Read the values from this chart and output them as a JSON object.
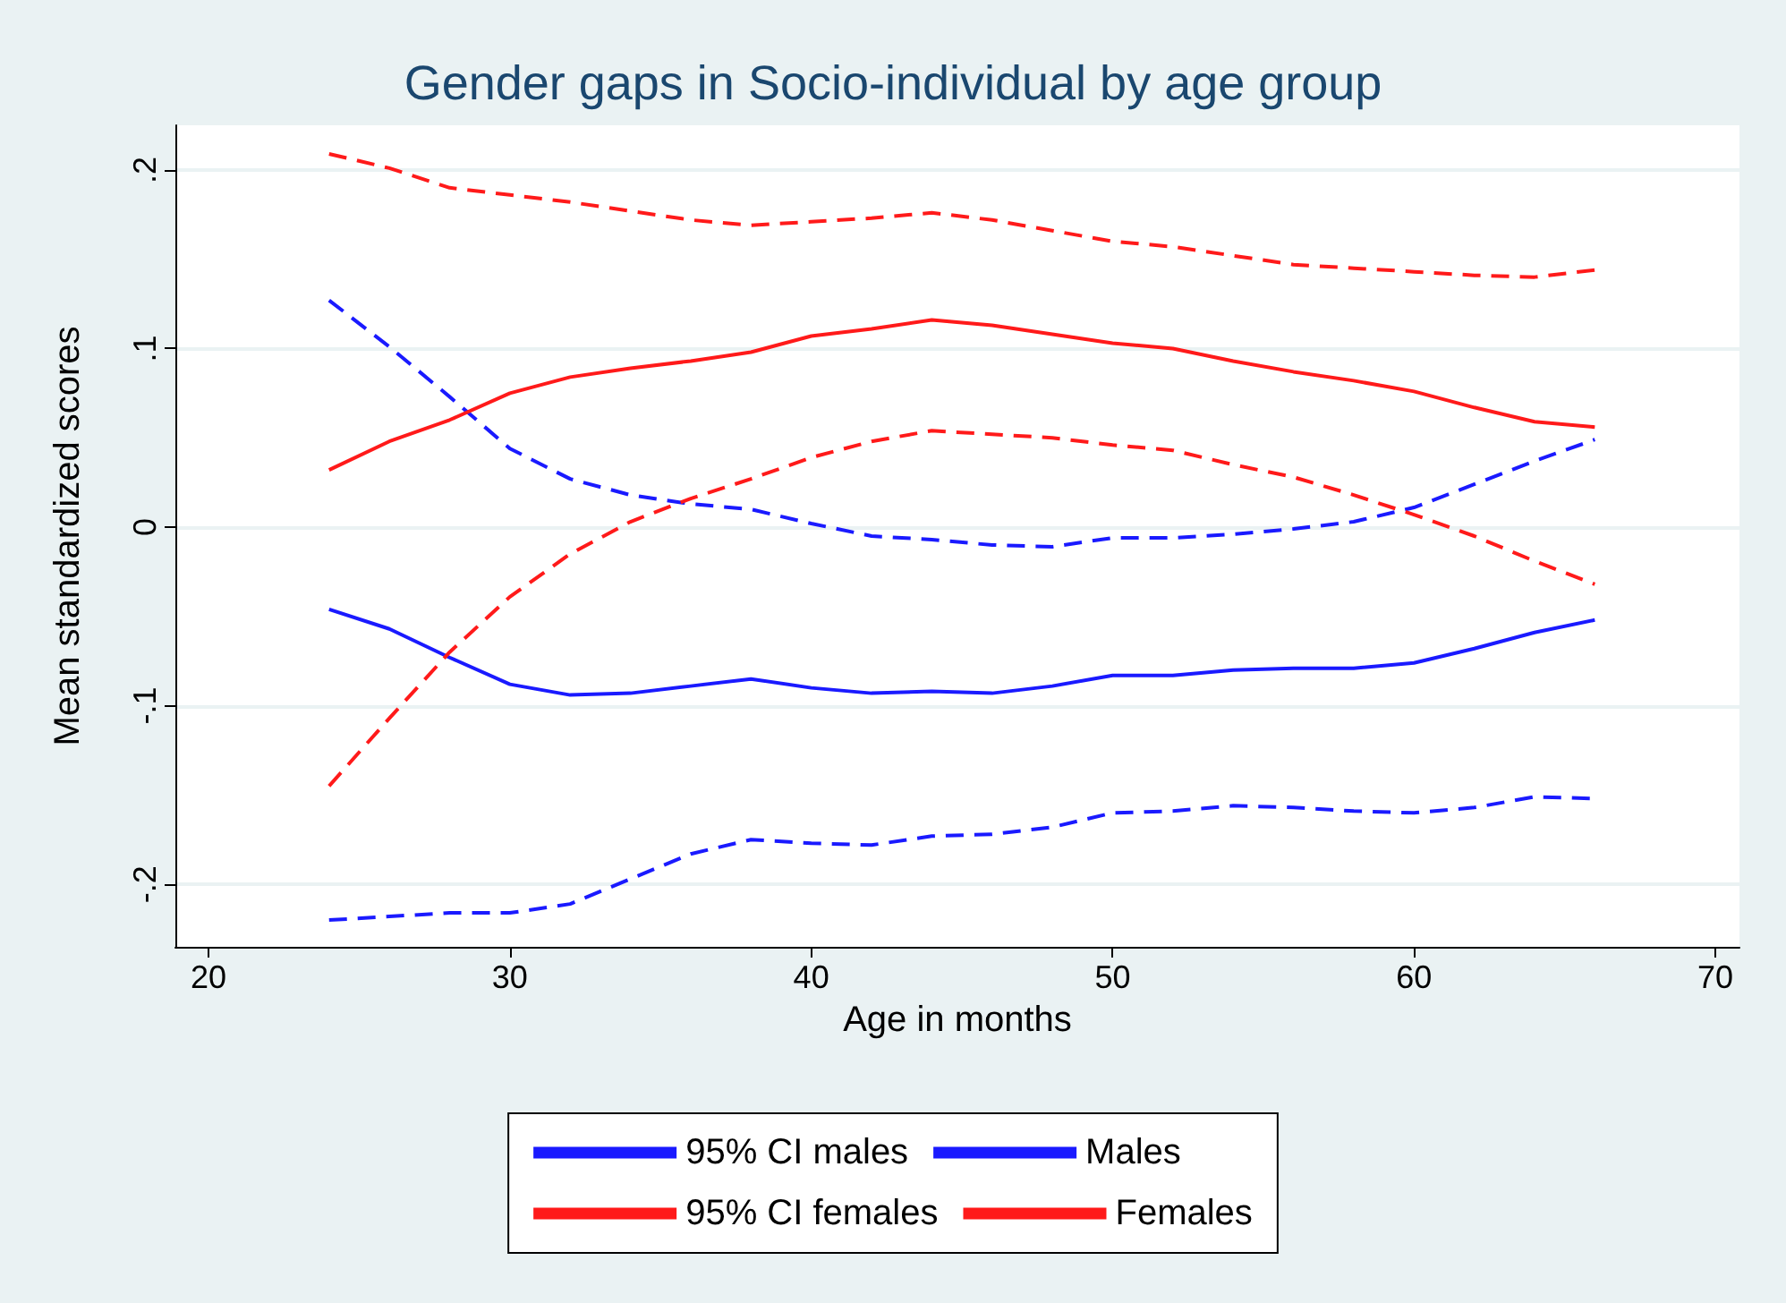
{
  "chart_data": {
    "type": "line",
    "title": "Gender gaps in Socio-individual by age group",
    "xlabel": "Age in months",
    "ylabel": "Mean standardized scores",
    "x": [
      24,
      26,
      28,
      30,
      32,
      34,
      36,
      38,
      40,
      42,
      44,
      46,
      48,
      50,
      52,
      54,
      56,
      58,
      60,
      62,
      64,
      66
    ],
    "series": [
      {
        "name": "95% CI males",
        "color": "#1a1aff",
        "line_style": "dashed",
        "values": [
          0.127,
          0.101,
          0.073,
          0.044,
          0.027,
          0.018,
          0.013,
          0.01,
          0.002,
          -0.005,
          -0.007,
          -0.01,
          -0.011,
          -0.006,
          -0.006,
          -0.004,
          -0.001,
          0.003,
          0.011,
          0.024,
          0.037,
          0.049
        ]
      },
      {
        "name": "Males",
        "color": "#1a1aff",
        "line_style": "solid",
        "values": [
          -0.046,
          -0.057,
          -0.073,
          -0.088,
          -0.094,
          -0.093,
          -0.089,
          -0.085,
          -0.09,
          -0.093,
          -0.092,
          -0.093,
          -0.089,
          -0.083,
          -0.083,
          -0.08,
          -0.079,
          -0.079,
          -0.076,
          -0.068,
          -0.059,
          -0.052
        ]
      },
      {
        "name": "95% CI females",
        "color": "#ff1a1a",
        "line_style": "dashed",
        "values": [
          -0.145,
          -0.107,
          -0.07,
          -0.039,
          -0.015,
          0.003,
          0.016,
          0.027,
          0.039,
          0.048,
          0.054,
          0.052,
          0.05,
          0.046,
          0.043,
          0.035,
          0.028,
          0.018,
          0.007,
          -0.005,
          -0.019,
          -0.032
        ]
      },
      {
        "name": "Females",
        "color": "#ff1a1a",
        "line_style": "solid",
        "values": [
          0.032,
          0.048,
          0.06,
          0.075,
          0.084,
          0.089,
          0.093,
          0.098,
          0.107,
          0.111,
          0.116,
          0.113,
          0.108,
          0.103,
          0.1,
          0.093,
          0.087,
          0.082,
          0.076,
          0.067,
          0.059,
          0.056
        ]
      },
      {
        "name": null,
        "color": "#1a1aff",
        "line_style": "dashed",
        "values": [
          -0.22,
          -0.218,
          -0.216,
          -0.216,
          -0.211,
          -0.197,
          -0.183,
          -0.175,
          -0.177,
          -0.178,
          -0.173,
          -0.172,
          -0.168,
          -0.16,
          -0.159,
          -0.156,
          -0.157,
          -0.159,
          -0.16,
          -0.157,
          -0.151,
          -0.152
        ]
      },
      {
        "name": null,
        "color": "#ff1a1a",
        "line_style": "dashed",
        "values": [
          0.209,
          0.201,
          0.19,
          0.186,
          0.182,
          0.177,
          0.172,
          0.169,
          0.171,
          0.173,
          0.176,
          0.172,
          0.166,
          0.16,
          0.157,
          0.152,
          0.147,
          0.145,
          0.143,
          0.141,
          0.14,
          0.144
        ]
      }
    ],
    "xlim": [
      18.9,
      70.8
    ],
    "ylim": [
      -0.235,
      0.225
    ],
    "xticks": [
      20,
      30,
      40,
      50,
      60,
      70
    ],
    "yticks": [
      {
        "value": -0.2,
        "label": "-.2"
      },
      {
        "value": -0.1,
        "label": "-.1"
      },
      0,
      {
        "value": 0.1,
        "label": ".1"
      },
      {
        "value": 0.2,
        "label": ".2"
      }
    ],
    "grid": "y",
    "legend": "bottom",
    "marker": "none"
  }
}
